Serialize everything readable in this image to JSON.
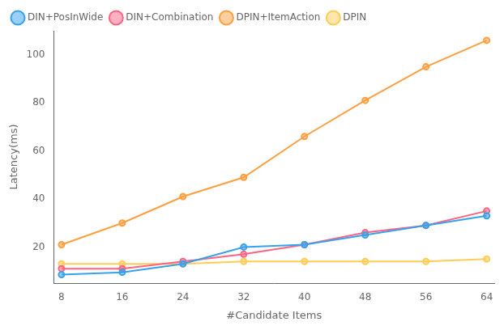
{
  "chart_data": {
    "type": "line",
    "x": [
      8,
      16,
      24,
      32,
      40,
      48,
      56,
      64
    ],
    "series": [
      {
        "name": "DIN+PosInWide",
        "values": [
          8.5,
          9.5,
          13,
          20,
          21,
          25,
          29,
          33
        ],
        "marker": "circle"
      },
      {
        "name": "DIN+Combination",
        "values": [
          11,
          11,
          14,
          17,
          21,
          26,
          29,
          35
        ],
        "marker": "circle"
      },
      {
        "name": "DPIN+ItemAction",
        "values": [
          21,
          30,
          41,
          49,
          66,
          81,
          95,
          106
        ],
        "marker": "circle"
      },
      {
        "name": "DPIN",
        "values": [
          13,
          13,
          13,
          14,
          14,
          14,
          14,
          15
        ],
        "marker": "circle"
      }
    ],
    "xlabel": "#Candidate Items",
    "ylabel": "Latency(ms)",
    "xlim": [
      7,
      65
    ],
    "ylim": [
      5,
      110
    ],
    "xticks": [
      8,
      16,
      24,
      32,
      40,
      48,
      56,
      64
    ],
    "yticks": [
      20,
      40,
      60,
      80,
      100
    ],
    "legend": "upper left",
    "grid": false
  }
}
